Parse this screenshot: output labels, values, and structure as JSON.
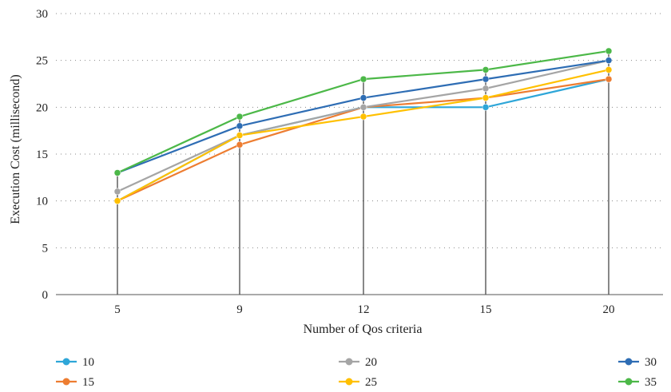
{
  "chart_data": {
    "type": "line",
    "xlabel": "Number of Qos criteria",
    "ylabel": "Execution Cost (millisecond)",
    "categories": [
      "5",
      "9",
      "12",
      "15",
      "20"
    ],
    "ylim": [
      0,
      30
    ],
    "yticks": [
      "0",
      "5",
      "10",
      "15",
      "20",
      "25",
      "30"
    ],
    "grid": "horizontal-dotted",
    "drop_lines": true,
    "legend_position": "bottom",
    "series": [
      {
        "name": "10",
        "color": "#2ea6d8",
        "values": [
          10,
          17,
          20,
          20,
          23
        ]
      },
      {
        "name": "15",
        "color": "#ed7d31",
        "values": [
          10,
          16,
          20,
          21,
          23
        ]
      },
      {
        "name": "20",
        "color": "#a5a5a5",
        "values": [
          11,
          17,
          20,
          22,
          25
        ]
      },
      {
        "name": "25",
        "color": "#ffc000",
        "values": [
          10,
          17,
          19,
          21,
          24
        ]
      },
      {
        "name": "30",
        "color": "#2e6db4",
        "values": [
          13,
          18,
          21,
          23,
          25
        ]
      },
      {
        "name": "35",
        "color": "#4cb848",
        "values": [
          13,
          19,
          23,
          24,
          26
        ]
      }
    ]
  }
}
